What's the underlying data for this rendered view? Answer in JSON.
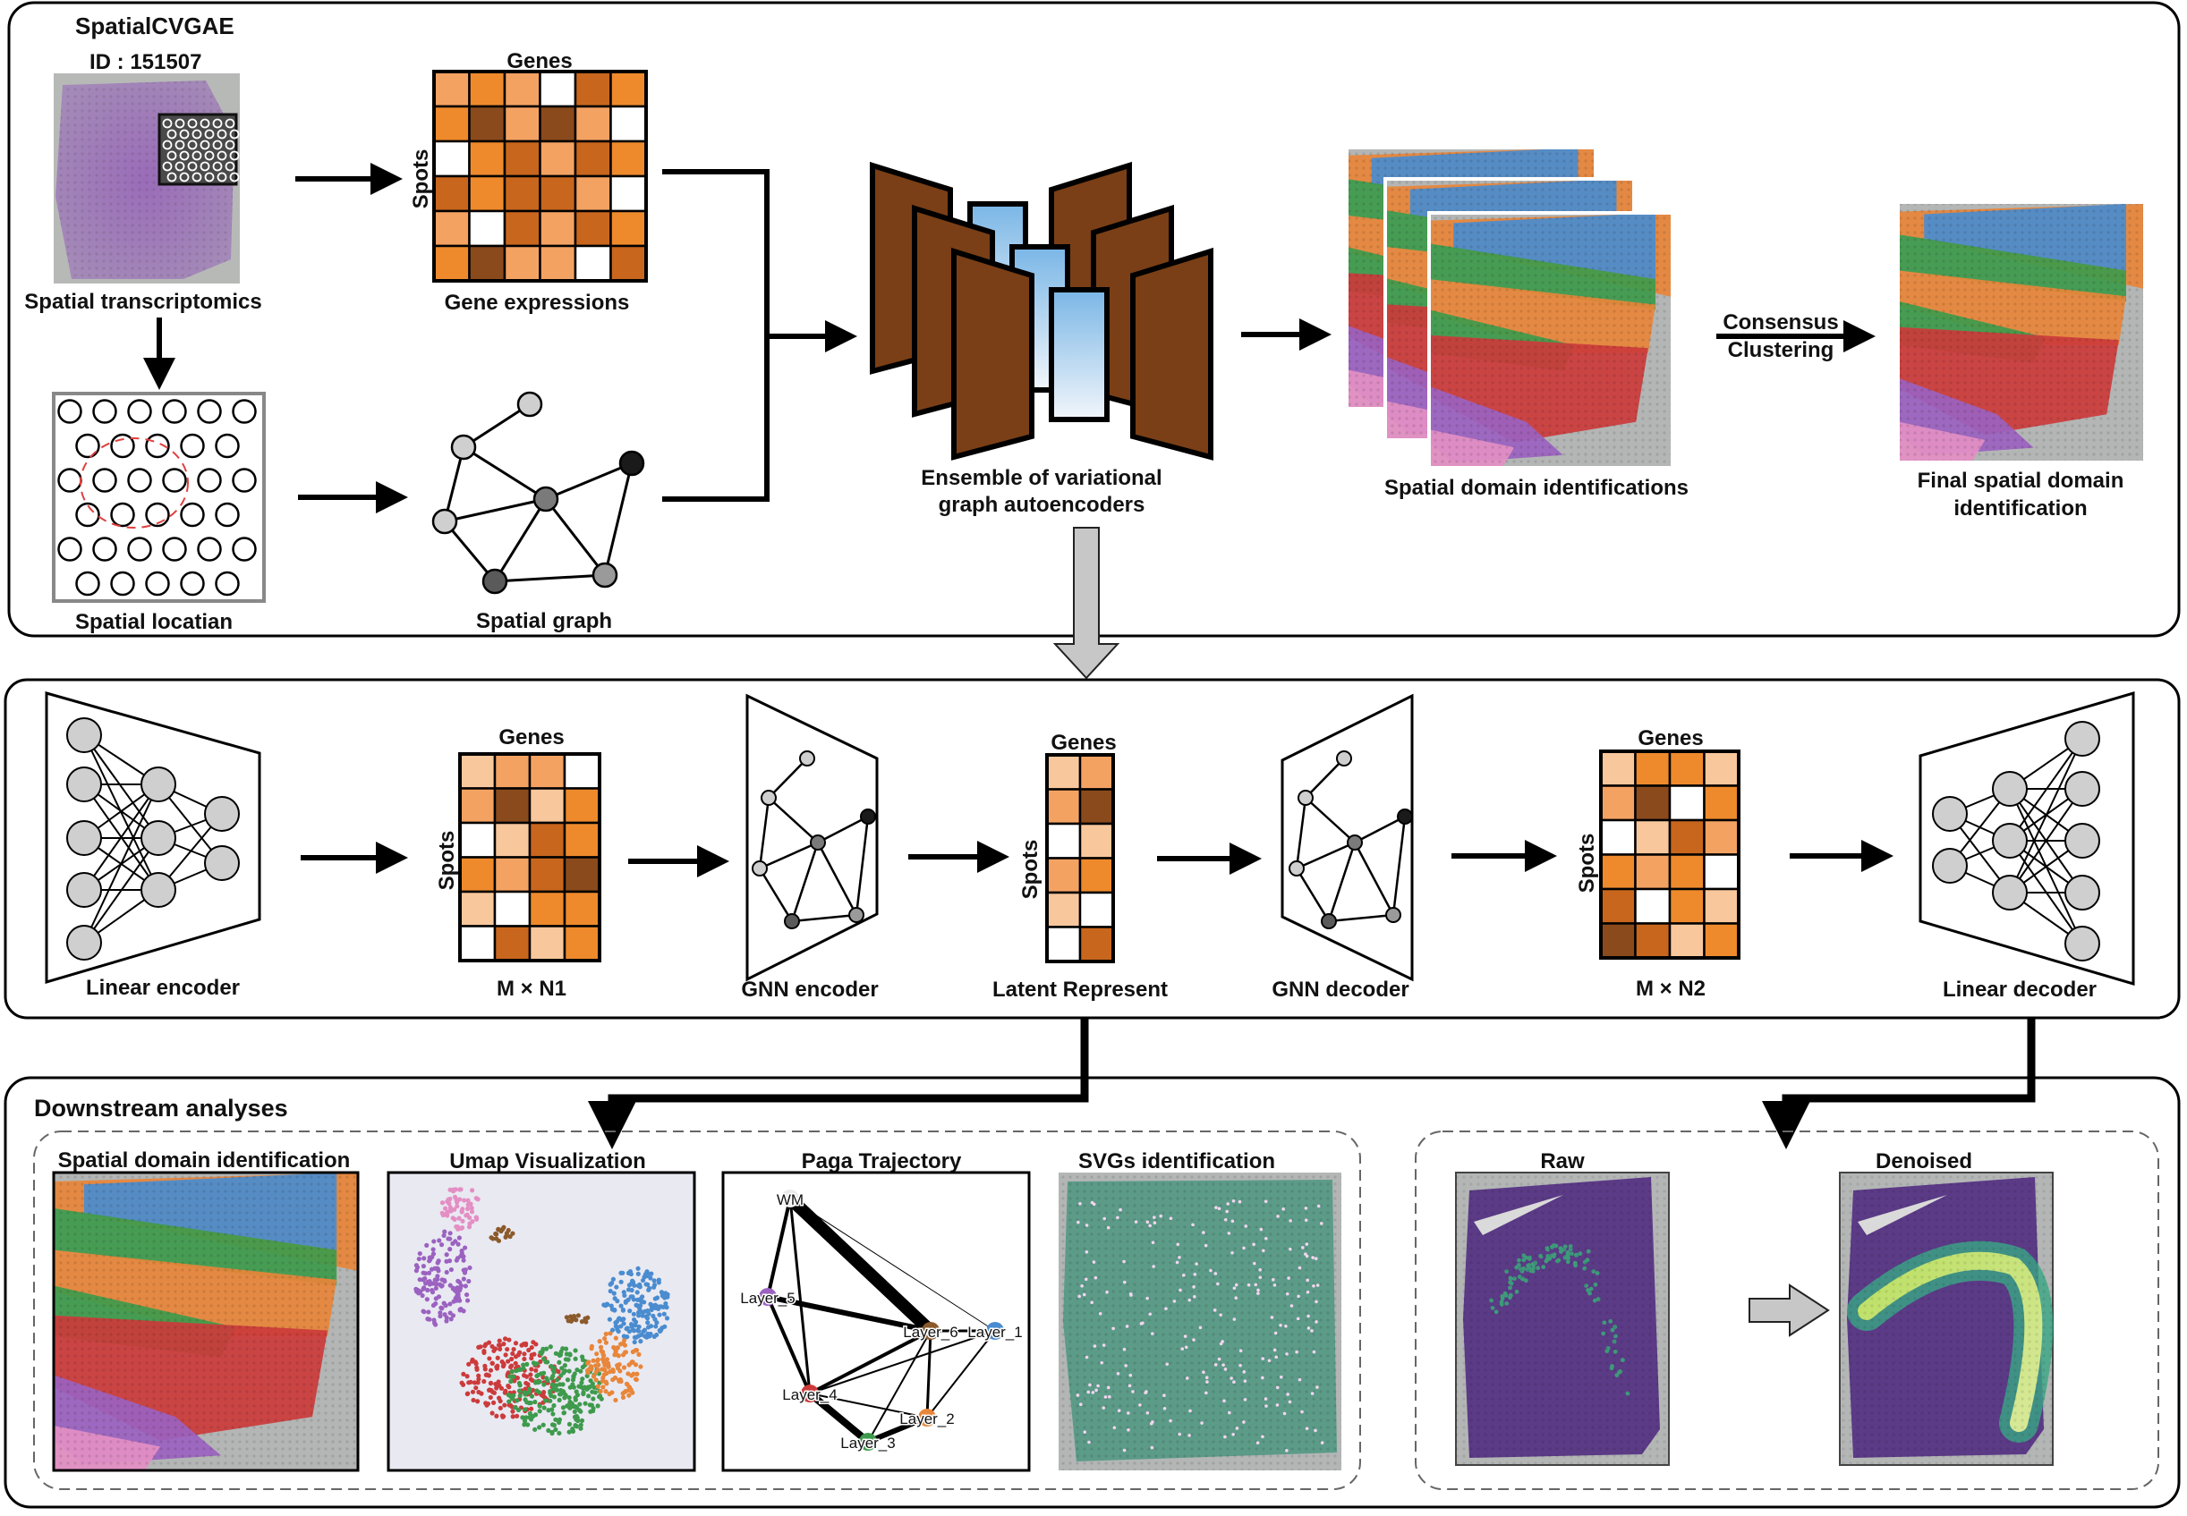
{
  "title": "SpatialCVGAE",
  "sample_id": "ID : 151507",
  "top": {
    "spatial_transcriptomics": "Spatial transcriptomics",
    "gene_expressions": "Gene expressions",
    "genes": "Genes",
    "spots": "Spots",
    "spatial_location": "Spatial locatian",
    "spatial_graph": "Spatial graph",
    "ensemble_line1": "Ensemble of variational",
    "ensemble_line2": "graph autoencoders",
    "domain_identifications": "Spatial domain identifications",
    "consensus_line1": "Consensus",
    "consensus_line2": "Clustering",
    "final_line1": "Final spatial domain",
    "final_line2": "identification"
  },
  "middle": {
    "linear_encoder": "Linear encoder",
    "genes": "Genes",
    "spots": "Spots",
    "m_n1": "M × N1",
    "gnn_encoder": "GNN encoder",
    "latent": "Latent Represent",
    "gnn_decoder": "GNN decoder",
    "m_n2": "M × N2",
    "linear_decoder": "Linear decoder"
  },
  "bottom": {
    "title": "Downstream analyses",
    "panels": [
      "Spatial domain identification",
      "Umap Visualization",
      "Paga Trajectory",
      "SVGs identification"
    ],
    "paga_nodes": [
      "WM",
      "Layer_5",
      "Layer_6",
      "Layer_1",
      "Layer_4",
      "Layer_2",
      "Layer_3"
    ],
    "raw": "Raw",
    "denoised": "Denoised"
  },
  "colors": {
    "orange_light": "#f9c79c",
    "orange_mid": "#f4a262",
    "orange": "#ee8a2c",
    "orange_dark": "#c8661d",
    "brown": "#8a4a1c",
    "encoder_brown": "#7a3f16",
    "domain_blue": "#4a8ccf",
    "domain_green": "#3e9a4c",
    "domain_orange": "#e8863a",
    "domain_red": "#cc3b3b",
    "domain_purple": "#9b62c0",
    "domain_pink": "#e48fc4",
    "tissue_purple": "#5b3a86"
  }
}
